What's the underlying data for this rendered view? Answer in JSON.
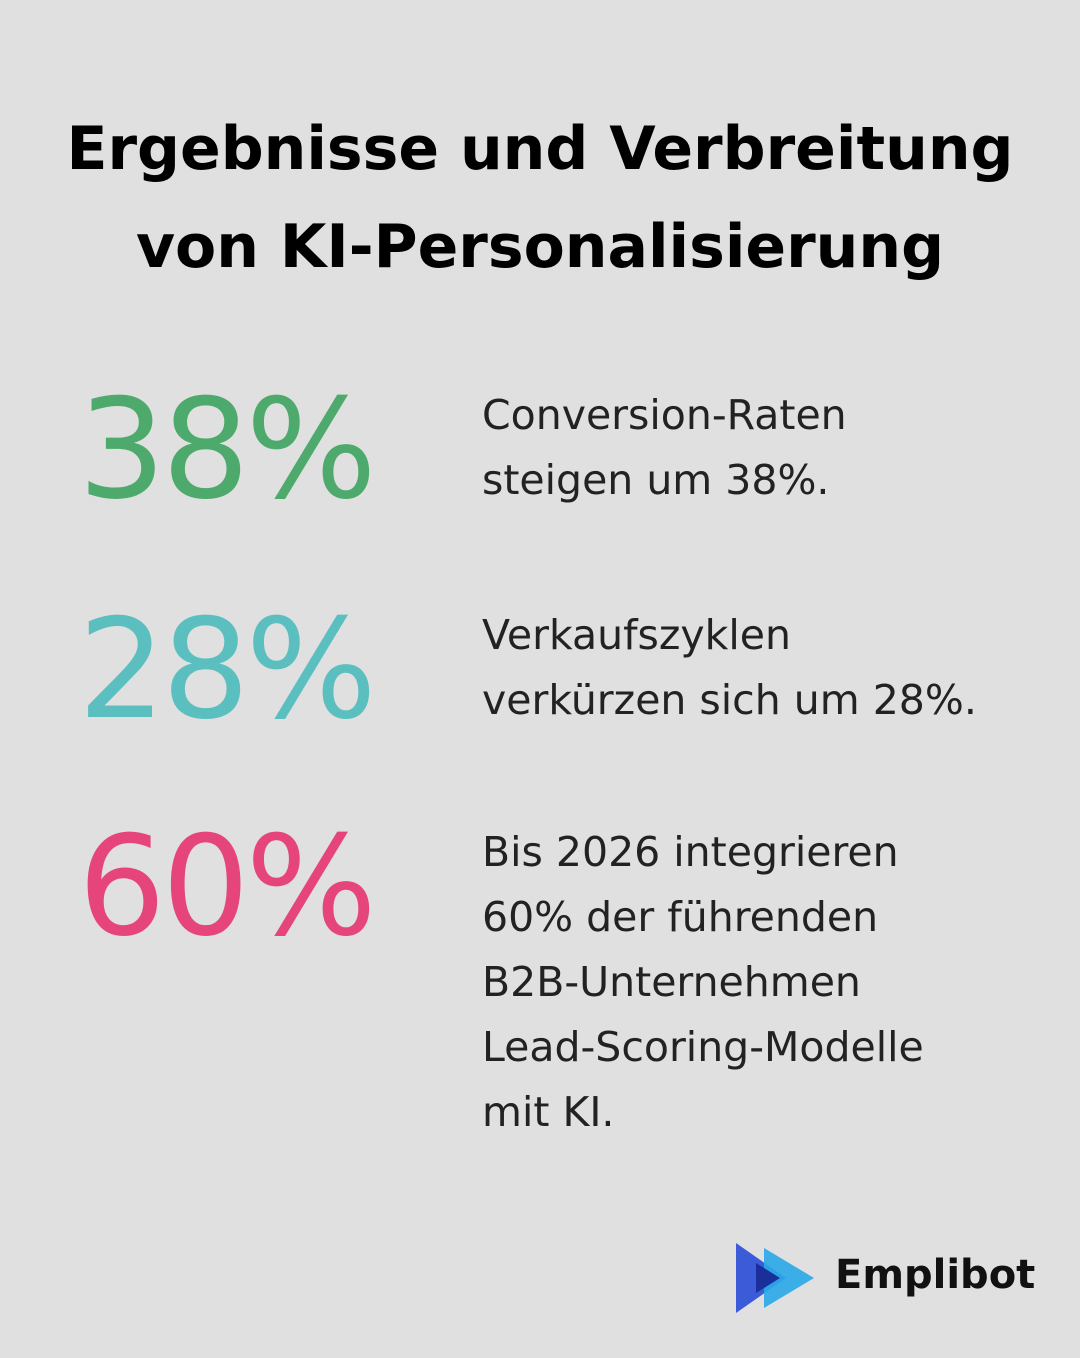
{
  "header": {
    "title_lines": [
      "Ergebnisse und Verbreitung",
      "von KI-Personalisierung"
    ]
  },
  "stats": [
    {
      "figure": "38%",
      "color": "#4daa6c",
      "lines": [
        "Conversion-Raten",
        "steigen um 38%."
      ]
    },
    {
      "figure": "28%",
      "color": "#5bbfbf",
      "lines": [
        "Verkaufszyklen",
        "verkürzen sich um 28%."
      ]
    },
    {
      "figure": "60%",
      "color": "#e5457a",
      "lines": [
        "Bis 2026 integrieren",
        "60% der führenden",
        "B2B-Unternehmen",
        "Lead-Scoring-Modelle",
        "mit KI."
      ]
    }
  ],
  "logo": {
    "text": "Emplibot"
  }
}
